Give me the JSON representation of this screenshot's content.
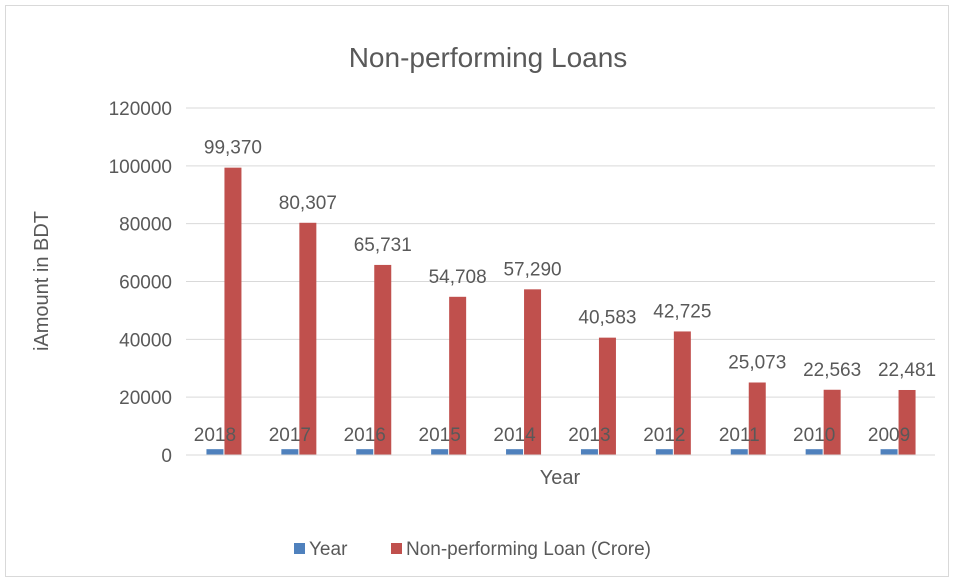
{
  "chart_data": {
    "type": "bar",
    "title": "Non-performing Loans",
    "xlabel": "Year",
    "ylabel": "iAmount in BDT",
    "ylim": [
      0,
      120000
    ],
    "yticks": [
      "0",
      "20000",
      "40000",
      "60000",
      "80000",
      "100000",
      "120000"
    ],
    "categories": [
      "",
      "",
      "",
      "",
      "",
      "",
      "",
      "",
      "",
      ""
    ],
    "series": [
      {
        "name": "Year",
        "values": [
          2018,
          2017,
          2016,
          2015,
          2014,
          2013,
          2012,
          2011,
          2010,
          2009
        ],
        "labels": [
          "2018",
          "2017",
          "2016",
          "2015",
          "2014",
          "2013",
          "2012",
          "2011",
          "2010",
          "2009"
        ],
        "color": "#4f81bd"
      },
      {
        "name": "Non-performing Loan (Crore)",
        "values": [
          99370,
          80307,
          65731,
          54708,
          57290,
          40583,
          42725,
          25073,
          22563,
          22481
        ],
        "labels": [
          "99,370",
          "80,307",
          "65,731",
          "54,708",
          "57,290",
          "40,583",
          "42,725",
          "25,073",
          "22,563",
          "22,481"
        ],
        "color": "#c0504d"
      }
    ],
    "grid": true,
    "gridColor": "#d9d9d9",
    "legend": "bottom"
  }
}
